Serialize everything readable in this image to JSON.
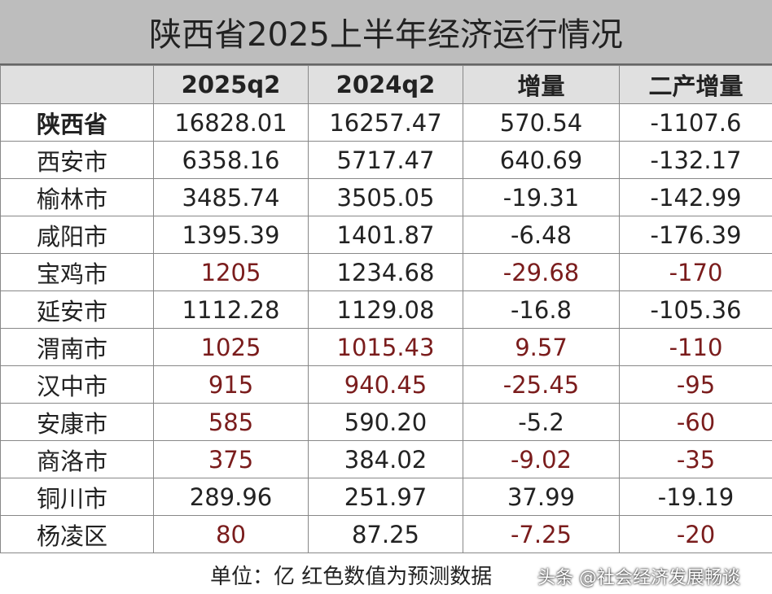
{
  "title": "陕西省2025上半年经济运行情况",
  "table": {
    "header": [
      "",
      "2025q2",
      "2024q2",
      "增量",
      "二产增量"
    ],
    "rows": [
      [
        "陕西省",
        "16828.01",
        "16257.47",
        "570.54",
        "-1107.6"
      ],
      [
        "西安市",
        "6358.16",
        "5717.47",
        "640.69",
        "-132.17"
      ],
      [
        "榆林市",
        "3485.74",
        "3505.05",
        "-19.31",
        "-142.99"
      ],
      [
        "咸阳市",
        "1395.39",
        "1401.87",
        "-6.48",
        "-176.39"
      ],
      [
        "宝鸡市",
        "1205",
        "1234.68",
        "-29.68",
        "-170"
      ],
      [
        "延安市",
        "1112.28",
        "1129.08",
        "-16.8",
        "-105.36"
      ],
      [
        "渭南市",
        "1025",
        "1015.43",
        "9.57",
        "-110"
      ],
      [
        "汉中市",
        "915",
        "940.45",
        "-25.45",
        "-95"
      ],
      [
        "安康市",
        "585",
        "590.20",
        "-5.2",
        "-60"
      ],
      [
        "商洛市",
        "375",
        "384.02",
        "-9.02",
        "-35"
      ],
      [
        "铜川市",
        "289.96",
        "251.97",
        "37.99",
        "-19.19"
      ],
      [
        "杨凌区",
        "80",
        "87.25",
        "-7.25",
        "-20"
      ]
    ],
    "cell_colors": [
      [
        "#222",
        "#222",
        "#222",
        "#222",
        "#222"
      ],
      [
        "#222",
        "#222",
        "#222",
        "#222",
        "#222"
      ],
      [
        "#222",
        "#222",
        "#222",
        "#222",
        "#222"
      ],
      [
        "#222",
        "#222",
        "#222",
        "#222",
        "#222"
      ],
      [
        "#222",
        "#7a1c1c",
        "#222",
        "#7a1c1c",
        "#7a1c1c"
      ],
      [
        "#222",
        "#222",
        "#222",
        "#222",
        "#222"
      ],
      [
        "#222",
        "#7a1c1c",
        "#7a1c1c",
        "#7a1c1c",
        "#7a1c1c"
      ],
      [
        "#222",
        "#7a1c1c",
        "#7a1c1c",
        "#7a1c1c",
        "#7a1c1c"
      ],
      [
        "#222",
        "#7a1c1c",
        "#222",
        "#222",
        "#7a1c1c"
      ],
      [
        "#222",
        "#7a1c1c",
        "#222",
        "#7a1c1c",
        "#7a1c1c"
      ],
      [
        "#222",
        "#222",
        "#222",
        "#222",
        "#222"
      ],
      [
        "#222",
        "#7a1c1c",
        "#222",
        "#7a1c1c",
        "#7a1c1c"
      ]
    ]
  },
  "footer": {
    "note": "单位：亿  红色数值为预测数据",
    "watermark": "头条 @社会经济发展畅谈"
  }
}
